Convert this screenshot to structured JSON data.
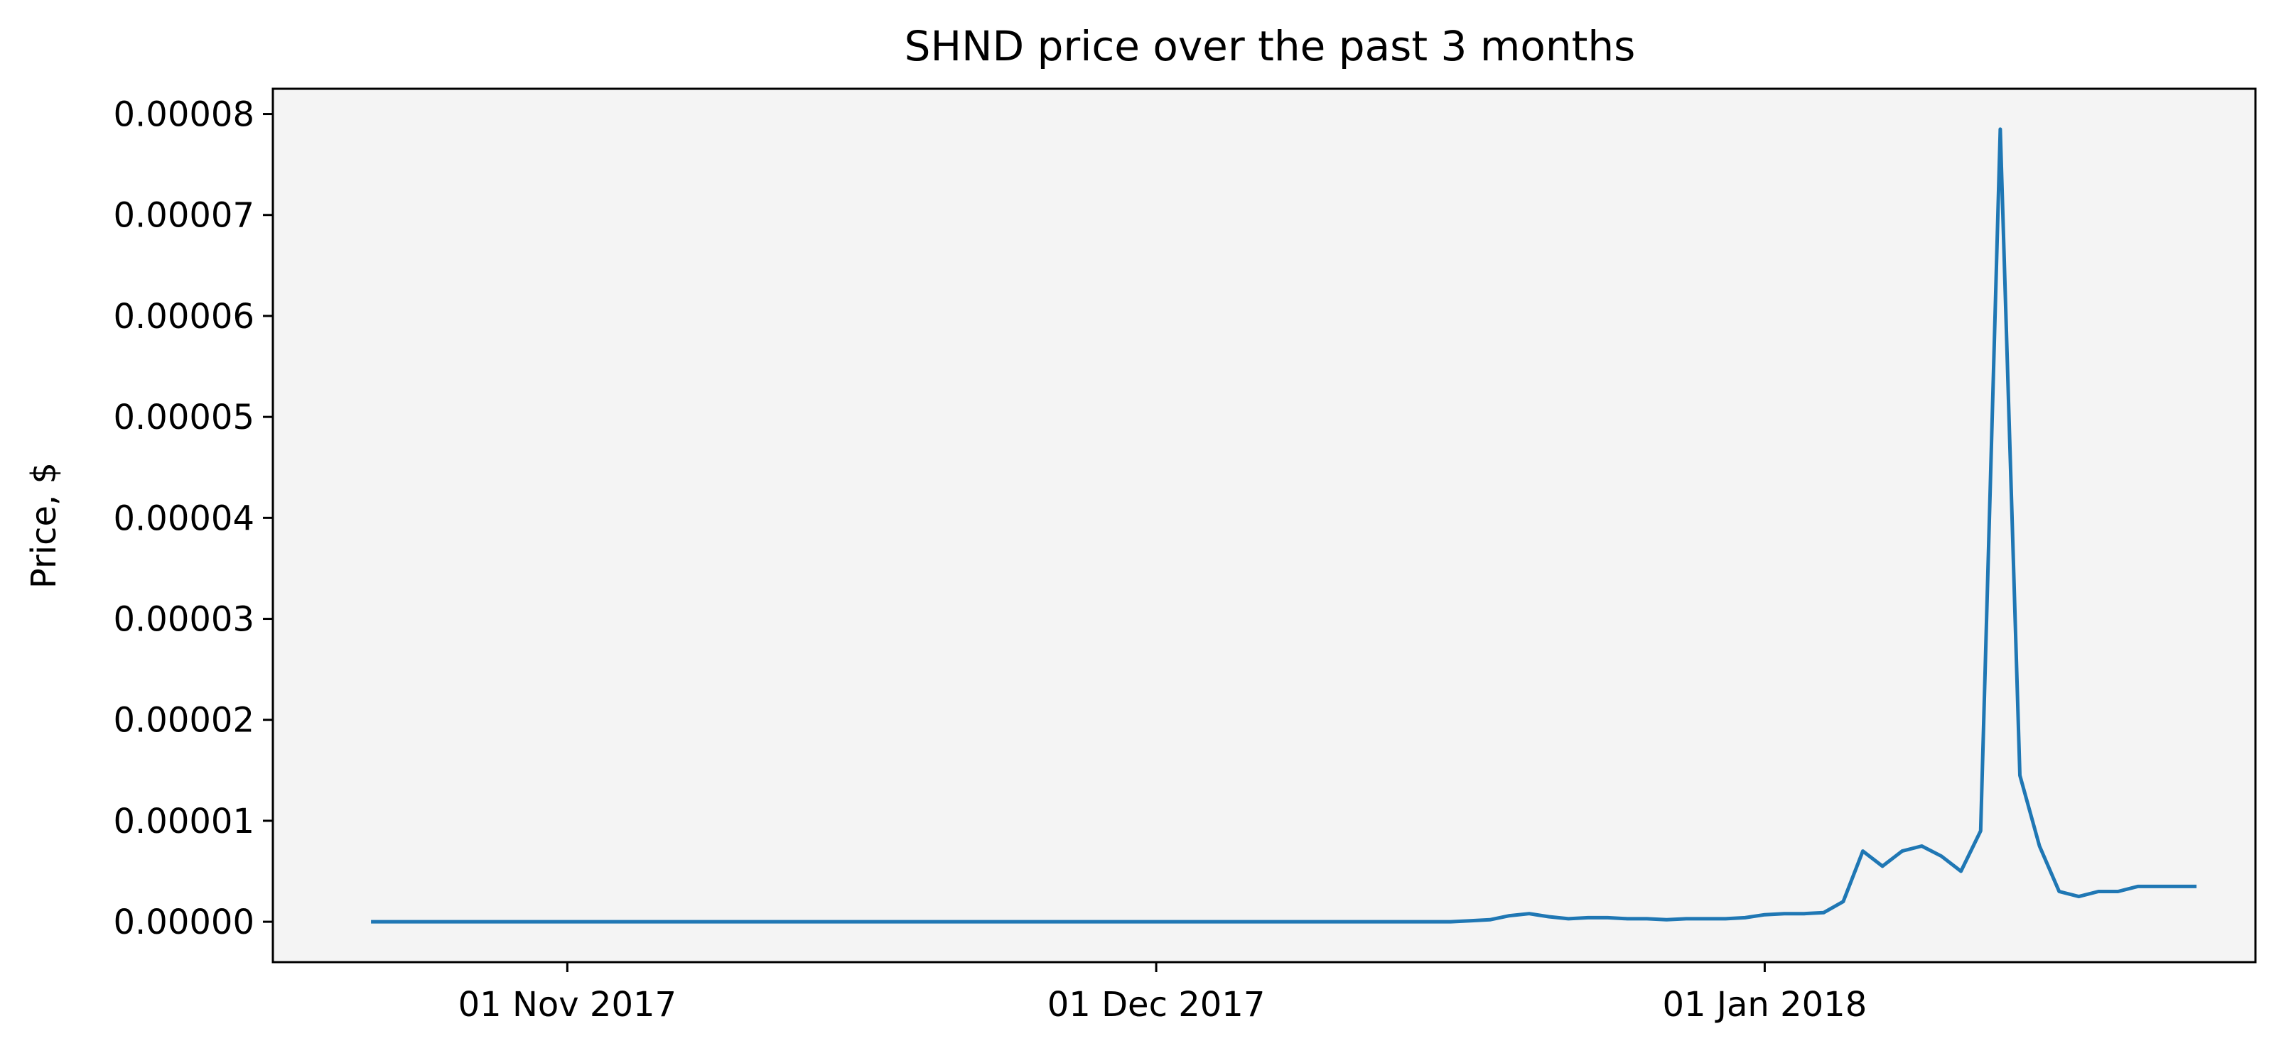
{
  "chart_data": {
    "type": "line",
    "title": "SHND price over the past 3 months",
    "xlabel": "",
    "ylabel": "Price, $",
    "grid": false,
    "background_color": "#f4f4f4",
    "line_color": "#1f77b4",
    "x_ticks": [
      {
        "date": "2017-11-01",
        "label": "01 Nov 2017"
      },
      {
        "date": "2017-12-01",
        "label": "01 Dec 2017"
      },
      {
        "date": "2018-01-01",
        "label": "01 Jan 2018"
      }
    ],
    "y_ticks": [
      {
        "value": 0,
        "label": "0.00000"
      },
      {
        "value": 1e-05,
        "label": "0.00001"
      },
      {
        "value": 2e-05,
        "label": "0.00002"
      },
      {
        "value": 3e-05,
        "label": "0.00003"
      },
      {
        "value": 4e-05,
        "label": "0.00004"
      },
      {
        "value": 5e-05,
        "label": "0.00005"
      },
      {
        "value": 6e-05,
        "label": "0.00006"
      },
      {
        "value": 7e-05,
        "label": "0.00007"
      },
      {
        "value": 8e-05,
        "label": "0.00008"
      }
    ],
    "xlim": [
      "2017-10-17",
      "2018-01-26"
    ],
    "ylim": [
      -4e-06,
      8.25e-05
    ],
    "series": [
      {
        "name": "",
        "x": [
          "2017-10-22",
          "2017-10-24",
          "2017-10-26",
          "2017-10-28",
          "2017-10-30",
          "2017-11-01",
          "2017-11-03",
          "2017-11-05",
          "2017-11-07",
          "2017-11-09",
          "2017-11-11",
          "2017-11-13",
          "2017-11-15",
          "2017-11-17",
          "2017-11-19",
          "2017-11-21",
          "2017-11-23",
          "2017-11-25",
          "2017-11-27",
          "2017-11-29",
          "2017-12-01",
          "2017-12-03",
          "2017-12-05",
          "2017-12-07",
          "2017-12-09",
          "2017-12-11",
          "2017-12-13",
          "2017-12-14",
          "2017-12-15",
          "2017-12-16",
          "2017-12-17",
          "2017-12-18",
          "2017-12-19",
          "2017-12-20",
          "2017-12-21",
          "2017-12-22",
          "2017-12-23",
          "2017-12-24",
          "2017-12-25",
          "2017-12-26",
          "2017-12-27",
          "2017-12-28",
          "2017-12-29",
          "2017-12-30",
          "2017-12-31",
          "2018-01-01",
          "2018-01-02",
          "2018-01-03",
          "2018-01-04",
          "2018-01-05",
          "2018-01-06",
          "2018-01-07",
          "2018-01-08",
          "2018-01-09",
          "2018-01-10",
          "2018-01-11",
          "2018-01-12",
          "2018-01-13",
          "2018-01-14",
          "2018-01-15",
          "2018-01-16",
          "2018-01-17",
          "2018-01-18",
          "2018-01-19",
          "2018-01-20",
          "2018-01-21",
          "2018-01-22",
          "2018-01-23"
        ],
        "y": [
          0,
          0,
          0,
          0,
          0,
          0,
          0,
          0,
          0,
          0,
          0,
          0,
          0,
          0,
          0,
          0,
          0,
          0,
          0,
          0,
          0,
          0,
          0,
          0,
          0,
          0,
          0,
          0,
          0,
          0,
          1e-07,
          2e-07,
          6e-07,
          8e-07,
          5e-07,
          3e-07,
          4e-07,
          4e-07,
          3e-07,
          3e-07,
          2e-07,
          3e-07,
          3e-07,
          3e-07,
          4e-07,
          7e-07,
          8e-07,
          8e-07,
          9e-07,
          2e-06,
          7e-06,
          5.5e-06,
          7e-06,
          7.5e-06,
          6.5e-06,
          5e-06,
          9e-06,
          7.85e-05,
          1.45e-05,
          7.5e-06,
          3e-06,
          2.5e-06,
          3e-06,
          3e-06,
          3.5e-06,
          3.5e-06,
          3.5e-06,
          3.5e-06
        ]
      }
    ]
  }
}
